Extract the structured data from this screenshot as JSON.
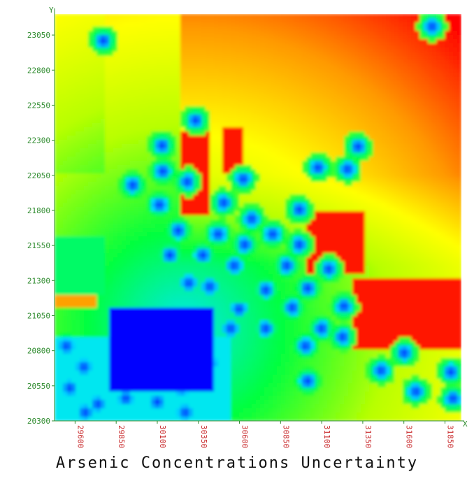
{
  "chart_data": {
    "type": "heatmap",
    "title": "Arsenic Concentrations Uncertainty",
    "xlabel": "X",
    "ylabel": "Y",
    "xlim": [
      29475,
      31950
    ],
    "ylim": [
      20300,
      23200
    ],
    "x_ticks": [
      "29600",
      "29850",
      "30100",
      "30350",
      "30600",
      "30850",
      "31100",
      "31350",
      "31600",
      "31850"
    ],
    "y_ticks": [
      "20300",
      "20550",
      "20800",
      "21050",
      "21300",
      "21550",
      "21800",
      "22050",
      "22300",
      "22550",
      "22800",
      "23050"
    ],
    "colorscale": [
      "#0000ff",
      "#00e5ff",
      "#00ff40",
      "#b8ff00",
      "#ffff00",
      "#ff9900",
      "#ff0000"
    ]
  }
}
